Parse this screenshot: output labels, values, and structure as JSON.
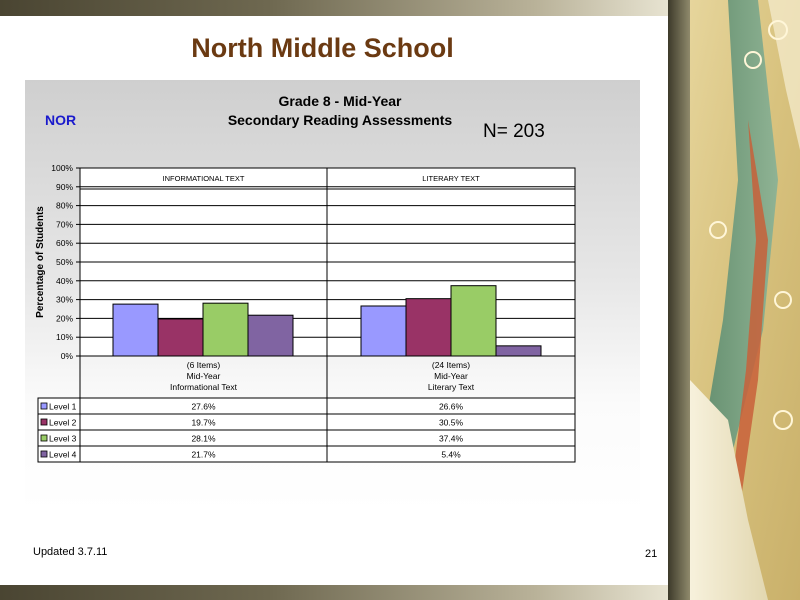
{
  "slide": {
    "title": "North Middle School",
    "updated": "Updated  3.7.11",
    "page_number": "21"
  },
  "chart": {
    "school_code": "NOR",
    "title_line1": "Grade 8 - Mid-Year",
    "title_line2": "Secondary Reading Assessments",
    "n_label": "N= 203",
    "colors": {
      "Level 1": "#9999ff",
      "Level 2": "#993366",
      "Level 3": "#99cc66",
      "Level 4": "#8064a2"
    }
  },
  "chart_data": {
    "type": "bar",
    "ylabel": "Percentage of Students",
    "ylim": [
      0,
      100
    ],
    "yticks": [
      "0%",
      "10%",
      "20%",
      "30%",
      "40%",
      "50%",
      "60%",
      "70%",
      "80%",
      "90%",
      "100%"
    ],
    "groups": [
      {
        "header": "INFORMATIONAL TEXT",
        "label": [
          "(6 Items)",
          "Mid-Year",
          "Informational Text"
        ]
      },
      {
        "header": "LITERARY TEXT",
        "label": [
          "(24 Items)",
          "Mid-Year",
          "Literary Text"
        ]
      }
    ],
    "series": [
      {
        "name": "Level 1",
        "values": [
          27.6,
          26.6
        ],
        "labels": [
          "27.6%",
          "26.6%"
        ]
      },
      {
        "name": "Level 2",
        "values": [
          19.7,
          30.5
        ],
        "labels": [
          "19.7%",
          "30.5%"
        ]
      },
      {
        "name": "Level 3",
        "values": [
          28.1,
          37.4
        ],
        "labels": [
          "28.1%",
          "37.4%"
        ]
      },
      {
        "name": "Level 4",
        "values": [
          21.7,
          5.4
        ],
        "labels": [
          "21.7%",
          "5.4%"
        ]
      }
    ]
  }
}
